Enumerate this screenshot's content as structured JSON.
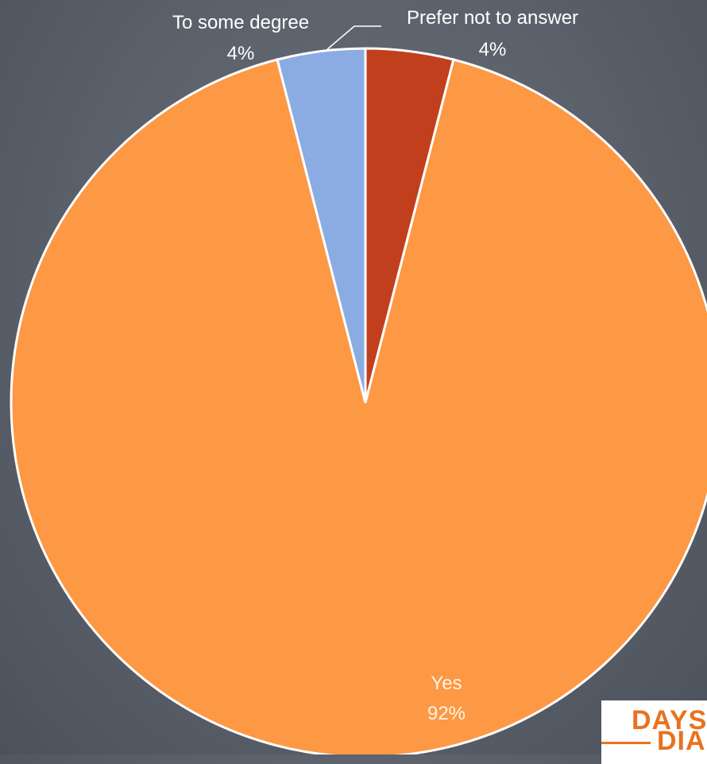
{
  "chart_data": {
    "type": "pie",
    "title": "",
    "slices": [
      {
        "label": "Prefer not to answer",
        "value": 4,
        "value_label": "4%",
        "color": "#c13f1c"
      },
      {
        "label": "Yes",
        "value": 92,
        "value_label": "92%",
        "color": "#fd9844"
      },
      {
        "label": "To some degree",
        "value": 4,
        "value_label": "4%",
        "color": "#8aace2"
      }
    ],
    "start_angle": "12 o'clock",
    "direction": "clockwise",
    "slice_border_color": "#ffffff",
    "legend": "none"
  },
  "logo": {
    "line1": "DAYS",
    "line2": "DIA",
    "color": "#e8731f"
  }
}
